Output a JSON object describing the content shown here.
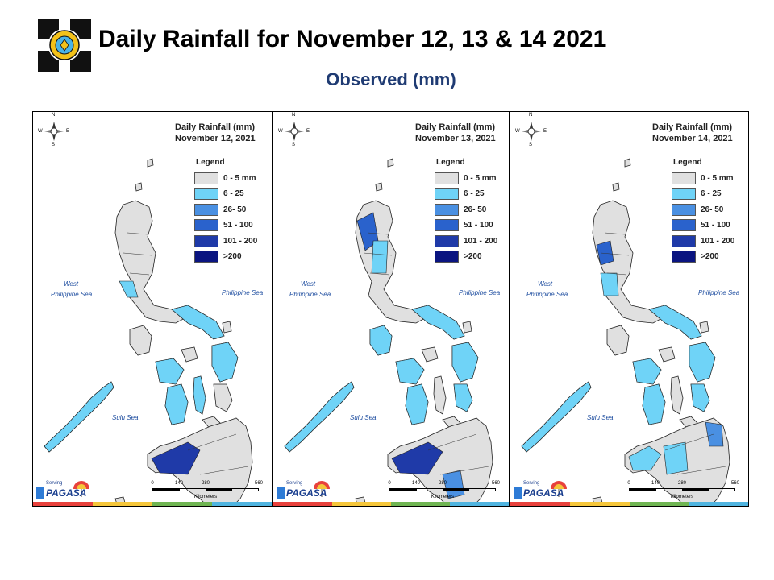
{
  "header": {
    "title": "Daily Rainfall for November 12, 13 & 14  2021",
    "subtitle": "Observed (mm)"
  },
  "legend": {
    "title": "Legend",
    "classes": [
      {
        "label": "0 - 5 mm",
        "color": "#e0e0e0"
      },
      {
        "label": "6 - 25",
        "color": "#6fd3f7"
      },
      {
        "label": "26- 50",
        "color": "#4a90e2"
      },
      {
        "label": "51 - 100",
        "color": "#2a62cc"
      },
      {
        "label": "101 - 200",
        "color": "#1f3aa8"
      },
      {
        "label": ">200",
        "color": "#0a1480"
      }
    ]
  },
  "panels": [
    {
      "map_title": "Daily Rainfall (mm)",
      "date": "November 12, 2021"
    },
    {
      "map_title": "Daily Rainfall (mm)",
      "date": "November 13, 2021"
    },
    {
      "map_title": "Daily Rainfall (mm)",
      "date": "November 14, 2021"
    }
  ],
  "labels": {
    "west_sea_1": "West",
    "west_sea_2": "Philippine Sea",
    "east_sea": "Philippine Sea",
    "sulu_sea": "Sulu Sea",
    "compass_n": "N",
    "compass_s": "S",
    "compass_e": "E",
    "compass_w": "W"
  },
  "scale_bar": {
    "ticks": [
      "0",
      "140",
      "280",
      "560"
    ],
    "unit": "Kilometers"
  },
  "brand": {
    "name": "PAGASA",
    "tagline": "Serving"
  },
  "stripe_colors": [
    "#e8413c",
    "#f5c63a",
    "#6fb552",
    "#4fb4e0"
  ]
}
